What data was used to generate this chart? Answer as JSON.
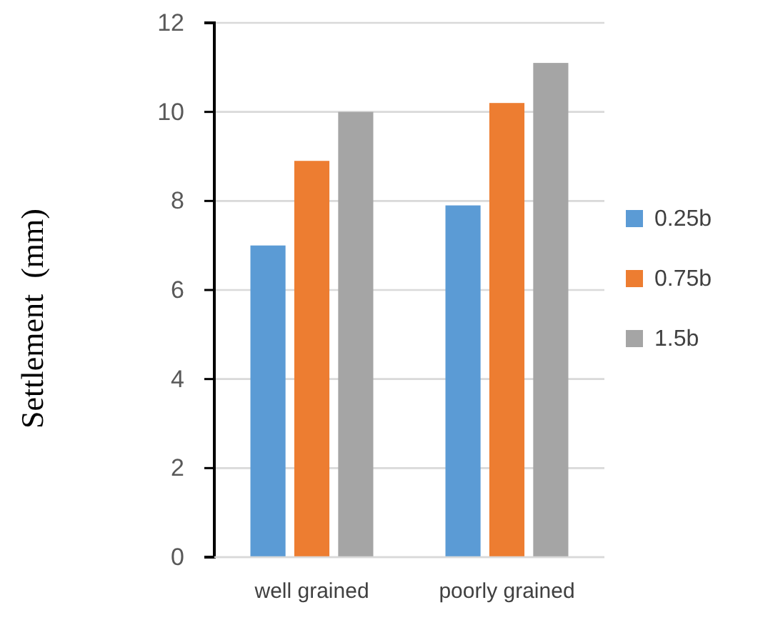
{
  "chart_data": {
    "type": "bar",
    "ylabel": "Settlement  (mm)",
    "categories": [
      "well grained",
      "poorly grained"
    ],
    "series": [
      {
        "name": "0.25b",
        "color": "#5b9bd5",
        "values": [
          7.0,
          7.9
        ]
      },
      {
        "name": "0.75b",
        "color": "#ed7d31",
        "values": [
          8.9,
          10.2
        ]
      },
      {
        "name": "1.5b",
        "color": "#a5a5a5",
        "values": [
          10.0,
          11.1
        ]
      }
    ],
    "ylim": [
      0,
      12
    ],
    "yticks": [
      0,
      2,
      4,
      6,
      8,
      10,
      12
    ],
    "grid": "y",
    "legend": "right"
  }
}
